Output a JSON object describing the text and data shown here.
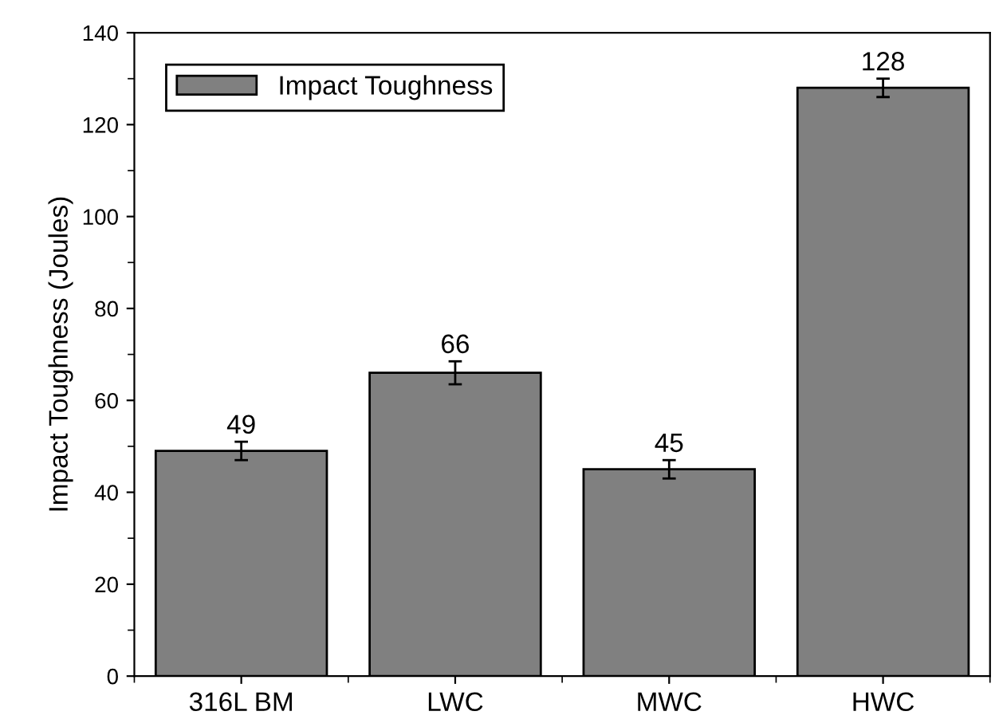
{
  "chart_data": {
    "type": "bar",
    "ylabel": "Impact Toughness (Joules)",
    "categories": [
      "316L BM",
      "LWC",
      "MWC",
      "HWC"
    ],
    "series": [
      {
        "name": "Impact Toughness",
        "color": "#808080",
        "values": [
          49,
          66,
          45,
          128
        ],
        "errors": [
          2,
          2.5,
          2,
          2
        ]
      }
    ],
    "ylim": [
      0,
      140
    ],
    "yticks": [
      0,
      20,
      40,
      60,
      80,
      100,
      120,
      140
    ],
    "data_labels": true,
    "legend": "top left",
    "grid": false
  }
}
